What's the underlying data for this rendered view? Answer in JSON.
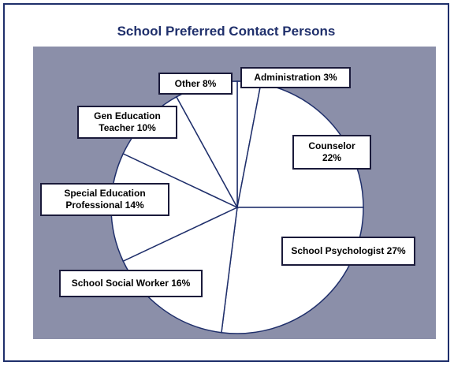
{
  "chart_data": {
    "type": "pie",
    "title": "School Preferred Contact Persons",
    "slices": [
      {
        "label": "Administration 3%",
        "value": 3
      },
      {
        "label": "Counselor 22%",
        "value": 22
      },
      {
        "label": "School Psychologist 27%",
        "value": 27
      },
      {
        "label": "School Social Worker 16%",
        "value": 16
      },
      {
        "label": "Special Education Professional 14%",
        "value": 14
      },
      {
        "label": "Gen Education Teacher 10%",
        "value": 10
      },
      {
        "label": "Other 8%",
        "value": 8
      }
    ],
    "label_lines": {
      "administration": "Administration 3%",
      "counselor": [
        "Counselor",
        "22%"
      ],
      "psychologist": "School Psychologist 27%",
      "social_worker": "School Social Worker 16%",
      "special_ed": [
        "Special Education",
        "Professional 14%"
      ],
      "gen_ed": [
        "Gen Education",
        "Teacher 10%"
      ],
      "other": "Other 8%"
    },
    "colors": {
      "plot_background": "#8b8fa9",
      "slice_fill": "#ffffff",
      "slice_stroke": "#1f2f6b",
      "title": "#1f2f6b"
    }
  }
}
